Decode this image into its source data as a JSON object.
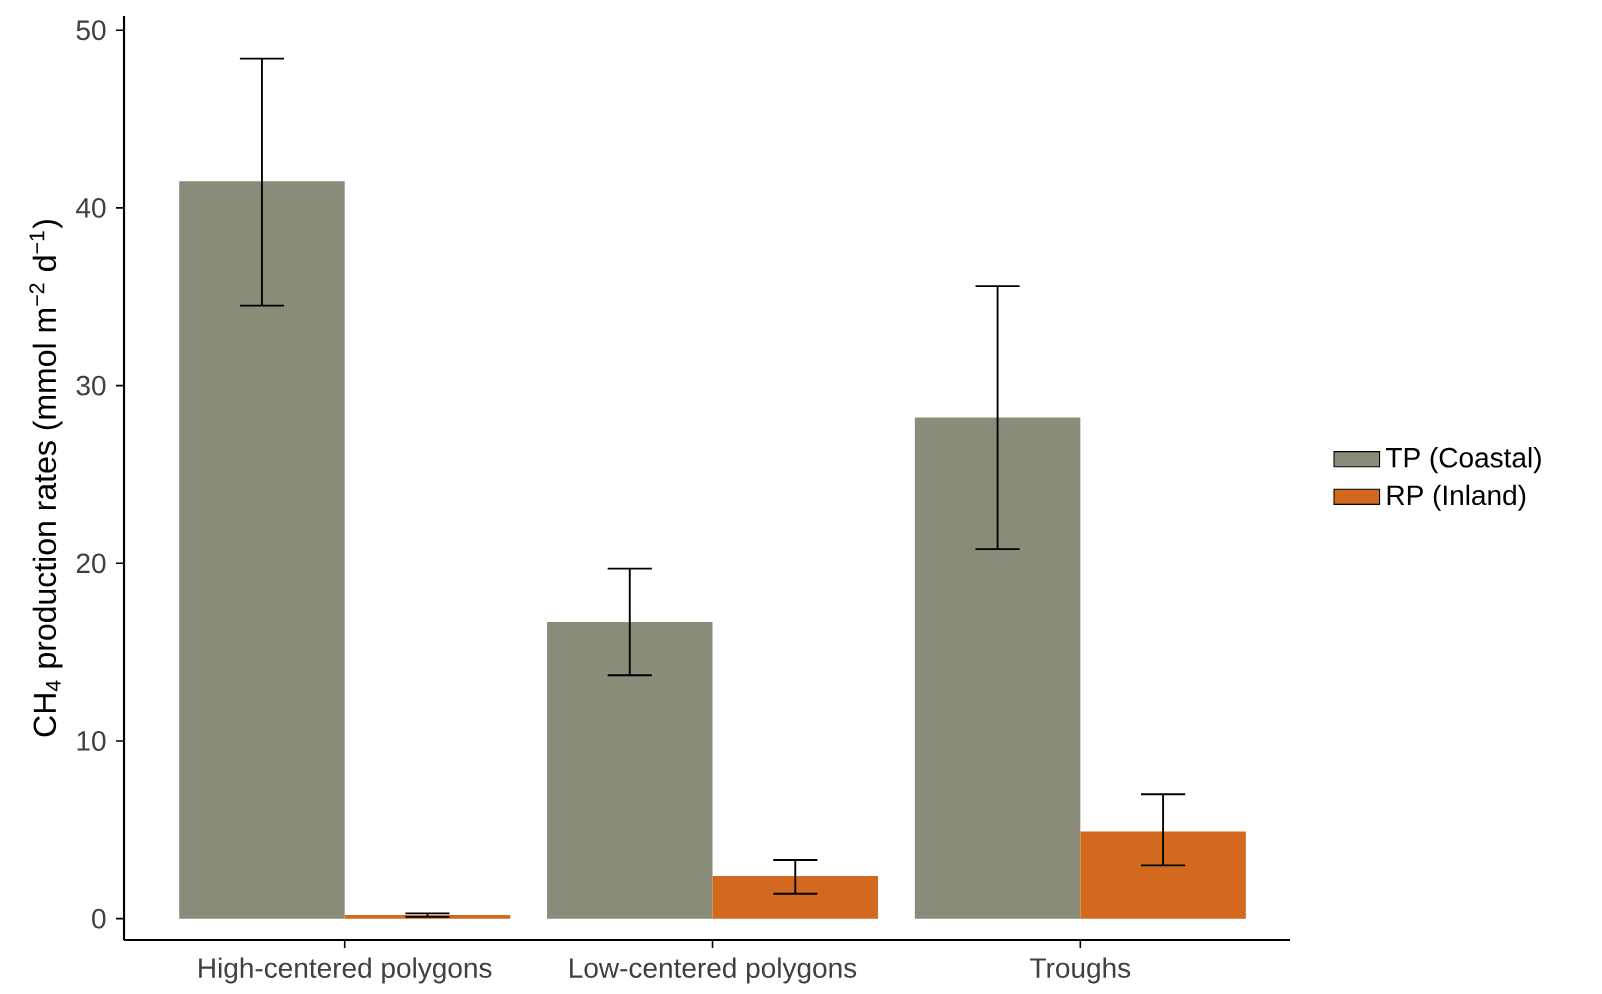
{
  "chart_data": {
    "type": "bar",
    "ylabel": "CH$_{4}$ production rates (mmol m$^{−2}$ d$^{−1}$)",
    "categories": [
      "High-centered polygons",
      "Low-centered polygons",
      "Troughs"
    ],
    "series": [
      {
        "name": "TP (Coastal)",
        "color": "#8b8b7a",
        "values": [
          41.5,
          16.7,
          28.2
        ],
        "errors": [
          [
            34.5,
            48.4
          ],
          [
            13.7,
            19.7
          ],
          [
            20.8,
            35.6
          ]
        ]
      },
      {
        "name": "RP (Inland)",
        "color": "#d2691e",
        "values": [
          0.2,
          2.4,
          4.9
        ],
        "errors": [
          [
            0.1,
            0.3
          ],
          [
            1.4,
            3.3
          ],
          [
            3.0,
            7.0
          ]
        ]
      }
    ],
    "ylim": [
      -1.2,
      50.8
    ],
    "yticks": [
      0,
      10,
      20,
      30,
      40,
      50
    ],
    "grid": false,
    "legend": "right"
  }
}
